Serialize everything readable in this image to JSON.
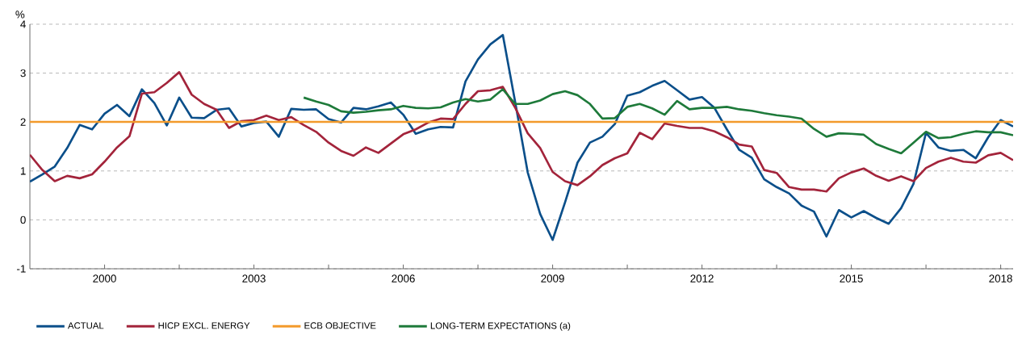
{
  "chart_data": {
    "type": "line",
    "ylabel": "%",
    "xlim": [
      1998.5,
      2018.25
    ],
    "ylim": [
      -1,
      4
    ],
    "xticks": [
      2000,
      {
        "value": 2001.5,
        "label": null
      },
      2003,
      {
        "value": 2004.5,
        "label": null
      },
      2006,
      {
        "value": 2007.5,
        "label": null
      },
      2009,
      {
        "value": 2010.5,
        "label": null
      },
      2012,
      {
        "value": 2013.5,
        "label": null
      },
      2015,
      {
        "value": 2016.5,
        "label": null
      },
      2018
    ],
    "yticks": [
      -1,
      0,
      1,
      2,
      3,
      4
    ],
    "grid": "y",
    "legend": "bottom",
    "series": [
      {
        "name": "ACTUAL",
        "color": "#0b4f8a",
        "x": [
          1998.5,
          1998.75,
          1999,
          1999.25,
          1999.5,
          1999.75,
          2000,
          2000.25,
          2000.5,
          2000.75,
          2001,
          2001.25,
          2001.5,
          2001.75,
          2002,
          2002.25,
          2002.5,
          2002.75,
          2003,
          2003.25,
          2003.5,
          2003.75,
          2004,
          2004.25,
          2004.5,
          2004.75,
          2005,
          2005.25,
          2005.5,
          2005.75,
          2006,
          2006.25,
          2006.5,
          2006.75,
          2007,
          2007.25,
          2007.5,
          2007.75,
          2008,
          2008.25,
          2008.5,
          2008.75,
          2009,
          2009.25,
          2009.5,
          2009.75,
          2010,
          2010.25,
          2010.5,
          2010.75,
          2011,
          2011.25,
          2011.5,
          2011.75,
          2012,
          2012.25,
          2012.5,
          2012.75,
          2013,
          2013.25,
          2013.5,
          2013.75,
          2014,
          2014.25,
          2014.5,
          2014.75,
          2015,
          2015.25,
          2015.5,
          2015.75,
          2016,
          2016.25,
          2016.5,
          2016.75,
          2017,
          2017.25,
          2017.5,
          2017.75,
          2018,
          2018.25
        ],
        "values": [
          0.78,
          0.93,
          1.09,
          1.47,
          1.94,
          1.85,
          2.17,
          2.35,
          2.12,
          2.67,
          2.39,
          1.93,
          2.5,
          2.09,
          2.08,
          2.25,
          2.28,
          1.91,
          1.98,
          2.01,
          1.7,
          2.27,
          2.25,
          2.26,
          2.06,
          1.99,
          2.29,
          2.26,
          2.32,
          2.4,
          2.15,
          1.76,
          1.85,
          1.9,
          1.89,
          2.83,
          3.28,
          3.59,
          3.78,
          2.4,
          0.97,
          0.12,
          -0.41,
          0.36,
          1.17,
          1.58,
          1.7,
          1.96,
          2.54,
          2.61,
          2.74,
          2.84,
          2.65,
          2.46,
          2.51,
          2.29,
          1.85,
          1.43,
          1.27,
          0.83,
          0.67,
          0.54,
          0.29,
          0.17,
          -0.34,
          0.2,
          0.05,
          0.18,
          0.04,
          -0.08,
          0.24,
          0.74,
          1.78,
          1.48,
          1.41,
          1.43,
          1.26,
          1.69,
          2.04,
          1.91
        ]
      },
      {
        "name": "HICP EXCL. ENERGY",
        "color": "#a3243b",
        "x": [
          1998.5,
          1998.75,
          1999,
          1999.25,
          1999.5,
          1999.75,
          2000,
          2000.25,
          2000.5,
          2000.75,
          2001,
          2001.25,
          2001.5,
          2001.75,
          2002,
          2002.25,
          2002.5,
          2002.75,
          2003,
          2003.25,
          2003.5,
          2003.75,
          2004,
          2004.25,
          2004.5,
          2004.75,
          2005,
          2005.25,
          2005.5,
          2005.75,
          2006,
          2006.25,
          2006.5,
          2006.75,
          2007,
          2007.25,
          2007.5,
          2007.75,
          2008,
          2008.25,
          2008.5,
          2008.75,
          2009,
          2009.25,
          2009.5,
          2009.75,
          2010,
          2010.25,
          2010.5,
          2010.75,
          2011,
          2011.25,
          2011.5,
          2011.75,
          2012,
          2012.25,
          2012.5,
          2012.75,
          2013,
          2013.25,
          2013.5,
          2013.75,
          2014,
          2014.25,
          2014.5,
          2014.75,
          2015,
          2015.25,
          2015.5,
          2015.75,
          2016,
          2016.25,
          2016.5,
          2016.75,
          2017,
          2017.25,
          2017.5,
          2017.75,
          2018,
          2018.25
        ],
        "values": [
          1.33,
          1.02,
          0.79,
          0.9,
          0.85,
          0.93,
          1.19,
          1.48,
          1.71,
          2.58,
          2.61,
          2.8,
          3.02,
          2.56,
          2.37,
          2.25,
          1.88,
          2.02,
          2.04,
          2.13,
          2.04,
          2.1,
          1.94,
          1.8,
          1.58,
          1.41,
          1.31,
          1.48,
          1.37,
          1.56,
          1.75,
          1.85,
          1.99,
          2.07,
          2.06,
          2.37,
          2.63,
          2.65,
          2.72,
          2.29,
          1.77,
          1.47,
          0.98,
          0.79,
          0.71,
          0.89,
          1.12,
          1.26,
          1.36,
          1.78,
          1.65,
          1.97,
          1.92,
          1.88,
          1.88,
          1.81,
          1.69,
          1.54,
          1.5,
          1.02,
          0.96,
          0.67,
          0.62,
          0.62,
          0.58,
          0.85,
          0.97,
          1.05,
          0.9,
          0.8,
          0.89,
          0.79,
          1.06,
          1.19,
          1.27,
          1.19,
          1.17,
          1.32,
          1.37,
          1.22
        ]
      },
      {
        "name": "ECB OBJECTIVE",
        "color": "#f39a2b",
        "x": [
          1998.5,
          2018.25
        ],
        "values": [
          2,
          2
        ]
      },
      {
        "name": "LONG-TERM EXPECTATIONS (a)",
        "color": "#1e7a3a",
        "x": [
          2004,
          2004.25,
          2004.5,
          2004.75,
          2005,
          2005.25,
          2005.5,
          2005.75,
          2006,
          2006.25,
          2006.5,
          2006.75,
          2007,
          2007.25,
          2007.5,
          2007.75,
          2008,
          2008.25,
          2008.5,
          2008.75,
          2009,
          2009.25,
          2009.5,
          2009.75,
          2010,
          2010.25,
          2010.5,
          2010.75,
          2011,
          2011.25,
          2011.5,
          2011.75,
          2012,
          2012.25,
          2012.5,
          2012.75,
          2013,
          2013.25,
          2013.5,
          2013.75,
          2014,
          2014.25,
          2014.5,
          2014.75,
          2015,
          2015.25,
          2015.5,
          2015.75,
          2016,
          2016.25,
          2016.5,
          2016.75,
          2017,
          2017.25,
          2017.5,
          2017.75,
          2018,
          2018.25
        ],
        "values": [
          2.5,
          2.42,
          2.35,
          2.22,
          2.19,
          2.21,
          2.24,
          2.26,
          2.33,
          2.29,
          2.28,
          2.3,
          2.4,
          2.47,
          2.42,
          2.46,
          2.67,
          2.37,
          2.37,
          2.44,
          2.57,
          2.63,
          2.55,
          2.37,
          2.07,
          2.08,
          2.31,
          2.37,
          2.28,
          2.15,
          2.43,
          2.26,
          2.29,
          2.29,
          2.31,
          2.26,
          2.23,
          2.18,
          2.14,
          2.11,
          2.07,
          1.86,
          1.7,
          1.77,
          1.76,
          1.74,
          1.55,
          1.45,
          1.36,
          1.58,
          1.8,
          1.67,
          1.69,
          1.76,
          1.81,
          1.79,
          1.79,
          1.73
        ]
      }
    ]
  }
}
